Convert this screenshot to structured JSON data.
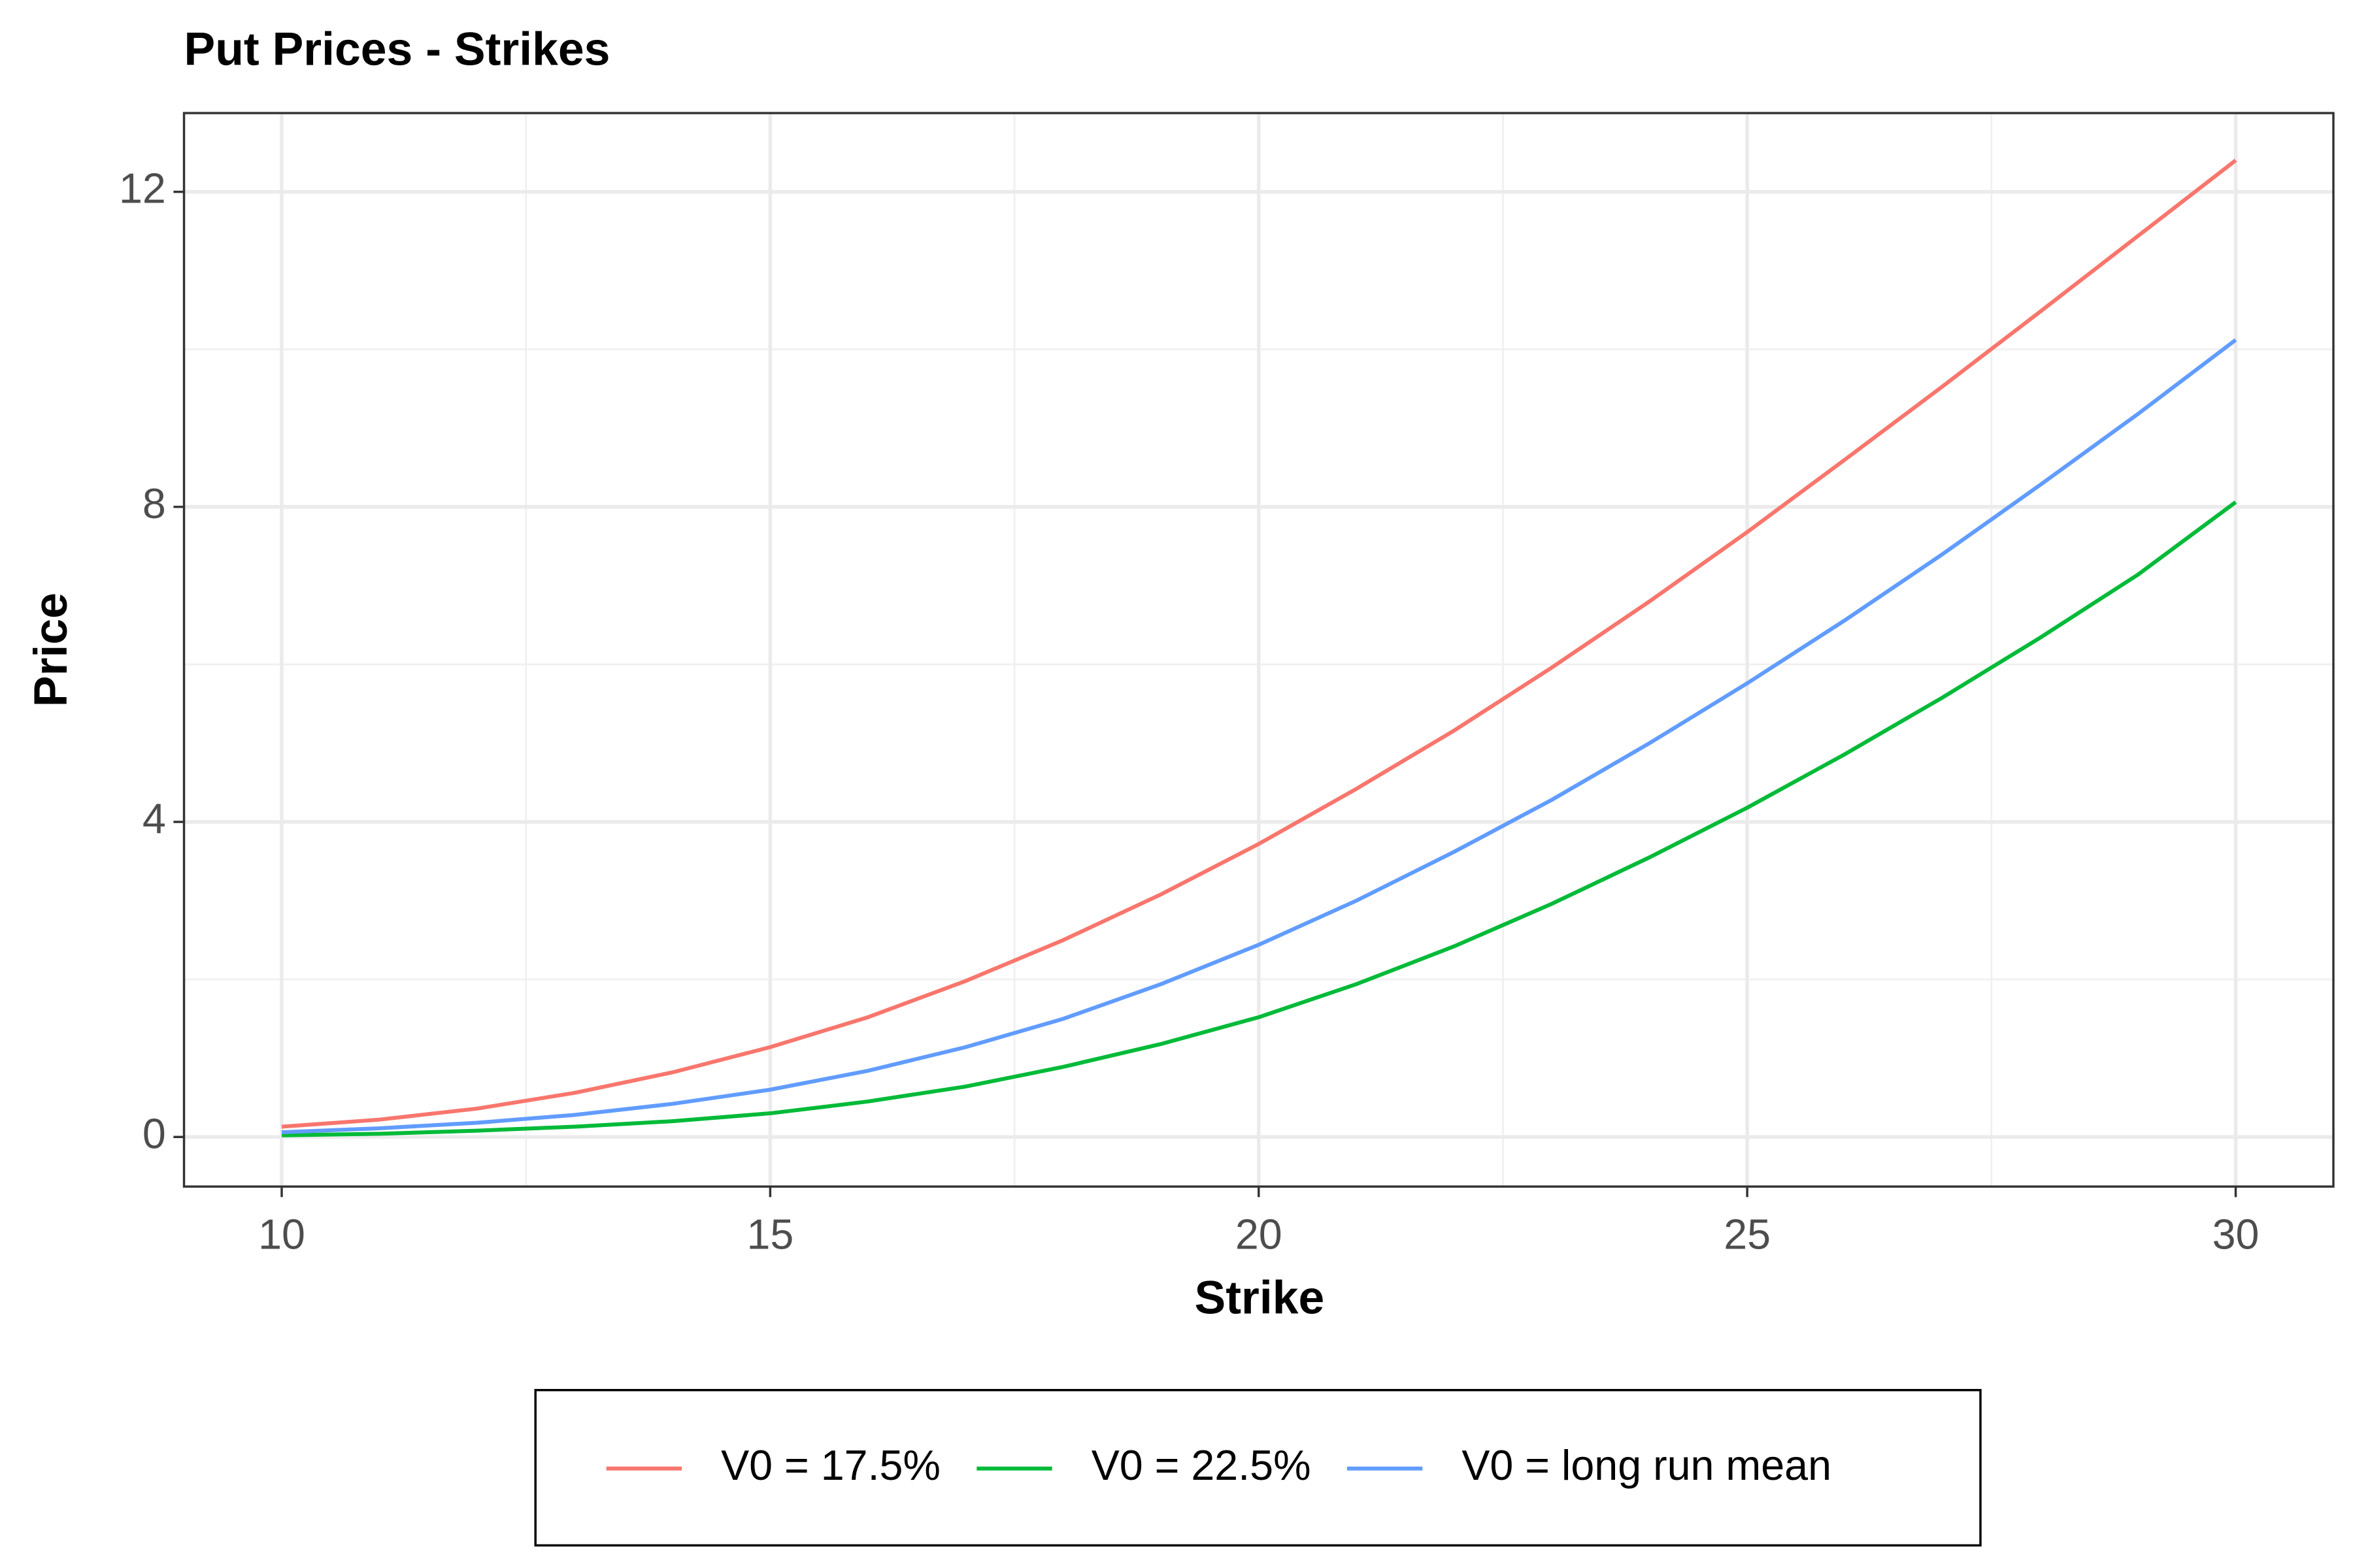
{
  "chart_data": {
    "type": "line",
    "title": "Put Prices - Strikes",
    "x_label": "Strike",
    "y_label": "Price",
    "x": [
      10,
      11,
      12,
      13,
      14,
      15,
      16,
      17,
      18,
      19,
      20,
      21,
      22,
      23,
      24,
      25,
      26,
      27,
      28,
      29,
      30
    ],
    "series": [
      {
        "name": "V0 = 17.5%",
        "color": "#F8766D",
        "values": [
          0.13,
          0.22,
          0.36,
          0.56,
          0.82,
          1.14,
          1.52,
          1.98,
          2.5,
          3.08,
          3.72,
          4.42,
          5.16,
          5.96,
          6.8,
          7.68,
          8.6,
          9.53,
          10.48,
          11.44,
          12.4
        ]
      },
      {
        "name": "V0 = 22.5%",
        "color": "#00BA38",
        "values": [
          0.02,
          0.04,
          0.08,
          0.13,
          0.2,
          0.3,
          0.45,
          0.64,
          0.89,
          1.18,
          1.52,
          1.94,
          2.42,
          2.96,
          3.55,
          4.18,
          4.86,
          5.58,
          6.34,
          7.14,
          8.06
        ]
      },
      {
        "name": "V0 = long run mean",
        "color": "#619CFF",
        "values": [
          0.06,
          0.11,
          0.18,
          0.28,
          0.42,
          0.6,
          0.84,
          1.14,
          1.5,
          1.94,
          2.44,
          3.0,
          3.62,
          4.28,
          5.0,
          5.76,
          6.56,
          7.4,
          8.28,
          9.18,
          10.12
        ]
      }
    ],
    "xlim": [
      9.0,
      31.0
    ],
    "xticks": [
      10,
      15,
      20,
      25,
      30
    ],
    "ylim": [
      -0.63,
      13.0
    ],
    "yticks": [
      0,
      4,
      8,
      12
    ],
    "grid": true,
    "legend_position": "bottom"
  }
}
